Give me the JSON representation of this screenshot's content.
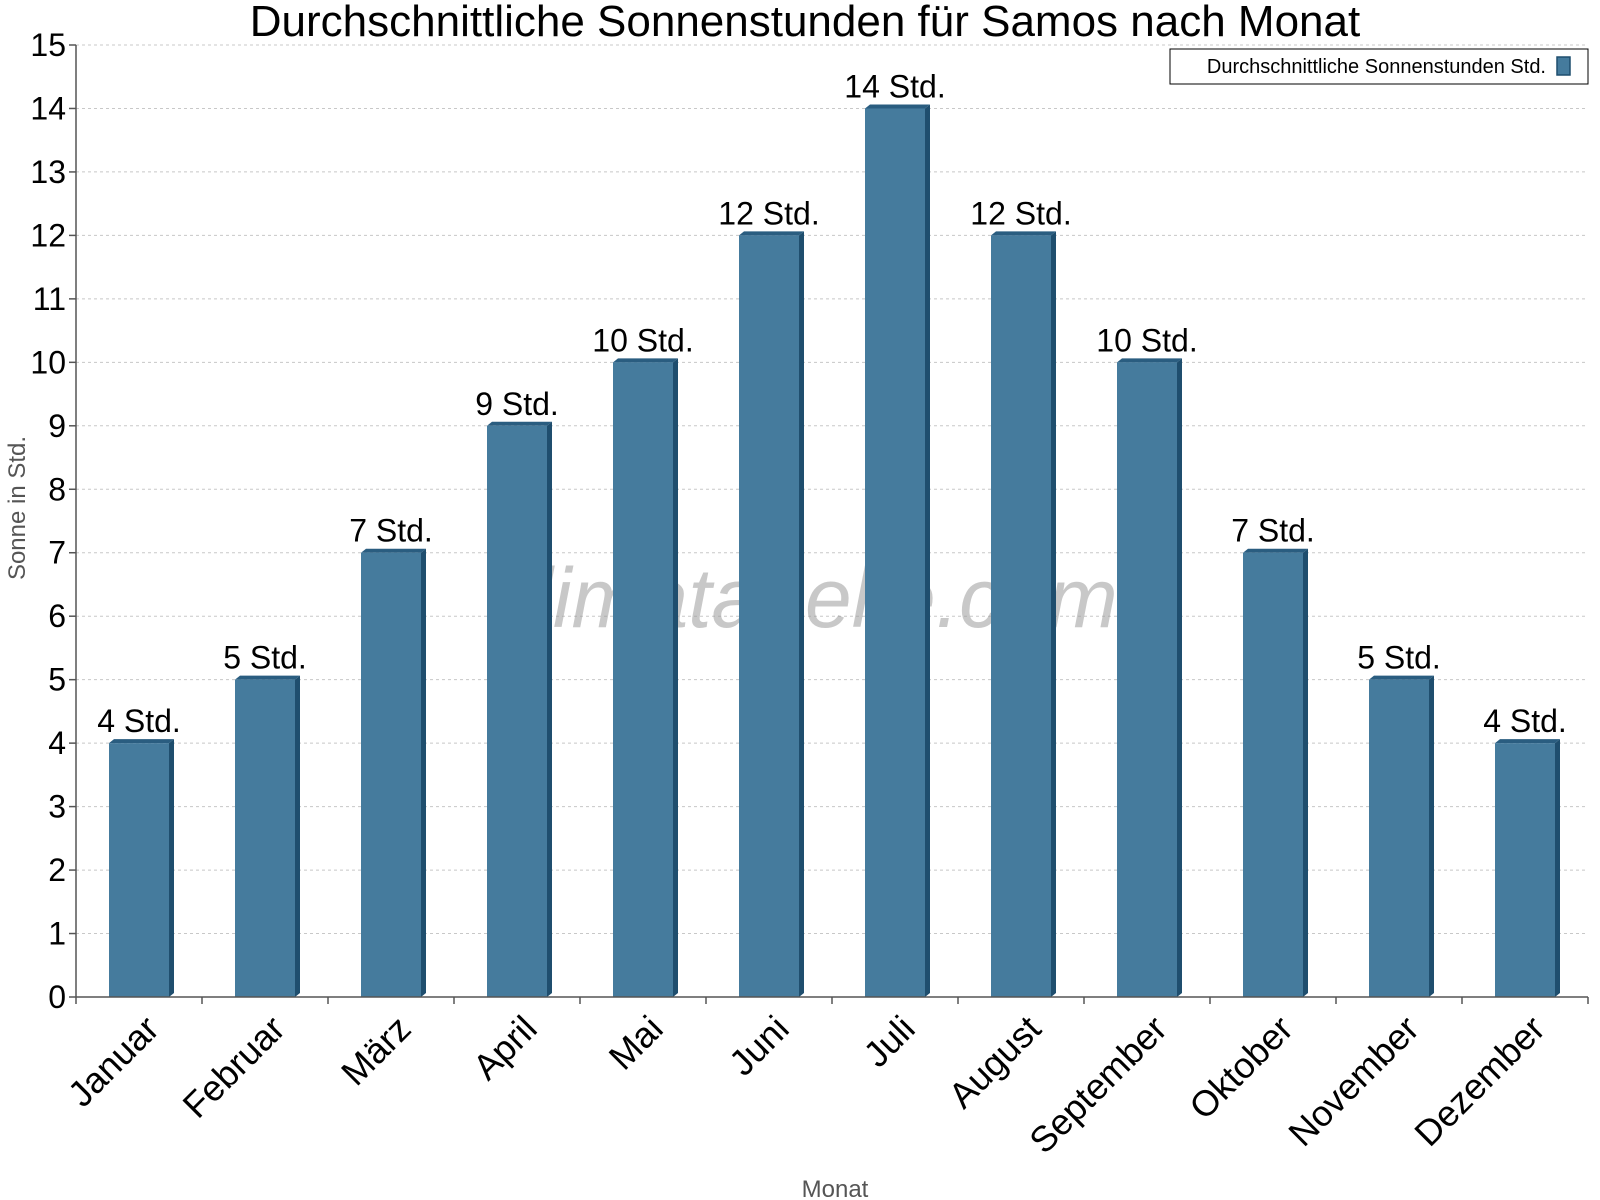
{
  "chart_data": {
    "type": "bar",
    "title": "Durchschnittliche Sonnenstunden für Samos nach Monat",
    "xlabel": "Monat",
    "ylabel": "Sonne in Std.",
    "ylim": [
      0,
      15
    ],
    "yticks": [
      0,
      1,
      2,
      3,
      4,
      5,
      6,
      7,
      8,
      9,
      10,
      11,
      12,
      13,
      14,
      15
    ],
    "grid": true,
    "legend_position": "top-right",
    "categories": [
      "Januar",
      "Februar",
      "März",
      "April",
      "Mai",
      "Juni",
      "Juli",
      "August",
      "September",
      "Oktober",
      "November",
      "Dezember"
    ],
    "series": [
      {
        "name": "Durchschnittliche Sonnenstunden Std.",
        "color": "#457b9d",
        "values": [
          4,
          5,
          7,
          9,
          10,
          12,
          14,
          12,
          10,
          7,
          5,
          4
        ],
        "data_labels": [
          "4 Std.",
          "5 Std.",
          "7 Std.",
          "9 Std.",
          "10 Std.",
          "12 Std.",
          "14 Std.",
          "12 Std.",
          "10 Std.",
          "7 Std.",
          "5 Std.",
          "4 Std."
        ]
      }
    ]
  },
  "watermark": "klimatabelle.com",
  "colors": {
    "bar_front": "#457b9d",
    "bar_side": "#1f4e6e",
    "bar_top": "#2a5d80",
    "grid": "#c8c8c8"
  }
}
